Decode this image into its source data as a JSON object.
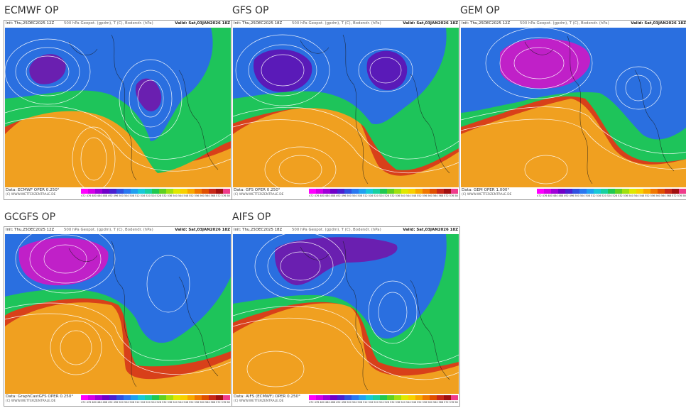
{
  "panels": [
    {
      "title": "ECMWF OP",
      "init": "Init: Thu,25DEC2025 12Z",
      "field": "500 hPa Geopot. (gpdm), T (C), Bodendr. (hPa)",
      "valid": "Valid: Sat,03JAN2026 18Z",
      "source": "Data: ECMWF OPER 0.250°",
      "website": "(C) WWW.WETTERZENTRALE.DE",
      "colors": {
        "cold": "#6a1fb0",
        "cool": "#2a6fe0",
        "mid": "#1ec45a",
        "warm": "#f0a020",
        "hot": "#d8401a"
      }
    },
    {
      "title": "GFS OP",
      "init": "Init: Thu,25DEC2025 18Z",
      "field": "500 hPa Geopot. (gpdm), T (C), Bodendr. (hPa)",
      "valid": "Valid: Sat,03JAN2026 18Z",
      "source": "Data: GFS OPER 0.250°",
      "website": "(C) WWW.WETTERZENTRALE.DE",
      "colors": {
        "cold": "#5a1ab8",
        "cool": "#2a6fe0",
        "mid": "#1ec45a",
        "warm": "#f0a020",
        "hot": "#d8401a"
      }
    },
    {
      "title": "GEM OP",
      "init": "Init: Thu,25DEC2025 12Z",
      "field": "500 hPa Geopot. (gpdm), T (C), Bodendr. (hPa)",
      "valid": "Valid: Sat,03JAN2026 18Z",
      "source": "Data: GEM OPER 1.000°",
      "website": "(C) WWW.WETTERZENTRALE.DE",
      "colors": {
        "cold": "#c020c8",
        "cool": "#2a6fe0",
        "mid": "#1ec45a",
        "warm": "#f0a020",
        "hot": "#d8401a"
      }
    },
    {
      "title": "GCGFS OP",
      "init": "Init: Thu,25DEC2025 12Z",
      "field": "500 hPa Geopot. (gpdm), T (C), Bodendr. (hPa)",
      "valid": "Valid: Sat,03JAN2026 18Z",
      "source": "Data: GraphCastGFS OPER 0.250°",
      "website": "(C) WWW.WETTERZENTRALE.DE",
      "colors": {
        "cold": "#c020c8",
        "cool": "#2a6fe0",
        "mid": "#1ec45a",
        "warm": "#f0a020",
        "hot": "#d8401a"
      }
    },
    {
      "title": "AIFS OP",
      "init": "Init: Thu,25DEC2025 18Z",
      "field": "500 hPa Geopot. (gpdm), T (C), Bodendr. (hPa)",
      "valid": "Valid: Sat,03JAN2026 18Z",
      "source": "Data: AIFS (ECMWF) OPER 0.250°",
      "website": "(C) WWW.WETTERZENTRALE.DE",
      "colors": {
        "cold": "#6a1fb0",
        "cool": "#2a6fe0",
        "mid": "#1ec45a",
        "warm": "#f0a020",
        "hot": "#d8401a"
      }
    }
  ],
  "colorbar": {
    "colors": [
      "#ff00ff",
      "#d400e8",
      "#a000d8",
      "#7000c8",
      "#4a20d0",
      "#3050e0",
      "#2a78f0",
      "#20a0f0",
      "#18c8d8",
      "#18d0a0",
      "#20c850",
      "#60d020",
      "#a0e010",
      "#e0e800",
      "#f8d000",
      "#f8a800",
      "#f07800",
      "#e05000",
      "#c82818",
      "#a01010",
      "#f03c8c"
    ],
    "ticks": "472 476 480 484 488 492 496 500 504 508 512 516 520 524 528 532 536 540 544 548 552 556 560 564 568 572 576 580 584"
  }
}
